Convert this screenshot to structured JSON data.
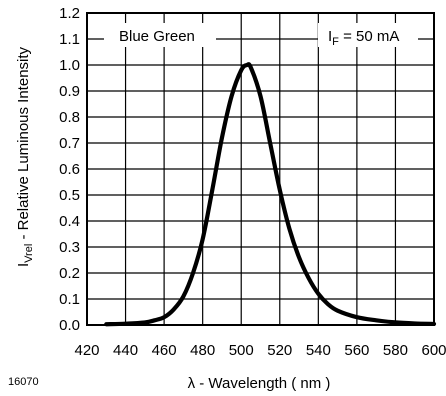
{
  "figure_id": "16070",
  "chart_data": {
    "type": "line",
    "title": "",
    "xlabel_prefix": "λ",
    "xlabel": "λ - Wavelength ( nm )",
    "ylabel": "IVrel - Relative Luminous Intensity",
    "ylabel_base": "I",
    "ylabel_sub": "Vrel",
    "ylabel_rest": " - Relative Luminous Intensity",
    "xlim": [
      420,
      600
    ],
    "ylim": [
      0.0,
      1.2
    ],
    "x_ticks": [
      420,
      440,
      460,
      480,
      500,
      520,
      540,
      560,
      580,
      600
    ],
    "y_ticks": [
      "0.0",
      "0.1",
      "0.2",
      "0.3",
      "0.4",
      "0.5",
      "0.6",
      "0.7",
      "0.8",
      "0.9",
      "1.0",
      "1.1",
      "1.2"
    ],
    "grid": true,
    "annotations": {
      "series_label": "Blue Green",
      "condition_base": "I",
      "condition_sub": "F",
      "condition_rest": " = 50 mA"
    },
    "series": [
      {
        "color": "#000000",
        "x": [
          430,
          440,
          450,
          455,
          460,
          465,
          470,
          475,
          480,
          485,
          490,
          495,
          500,
          503,
          505,
          510,
          515,
          520,
          525,
          530,
          535,
          540,
          545,
          550,
          560,
          570,
          580,
          590,
          600
        ],
        "y": [
          0.003,
          0.005,
          0.01,
          0.018,
          0.03,
          0.06,
          0.11,
          0.2,
          0.33,
          0.52,
          0.72,
          0.88,
          0.98,
          1.0,
          0.99,
          0.88,
          0.7,
          0.52,
          0.37,
          0.26,
          0.18,
          0.12,
          0.08,
          0.055,
          0.03,
          0.018,
          0.01,
          0.006,
          0.004
        ]
      }
    ]
  }
}
